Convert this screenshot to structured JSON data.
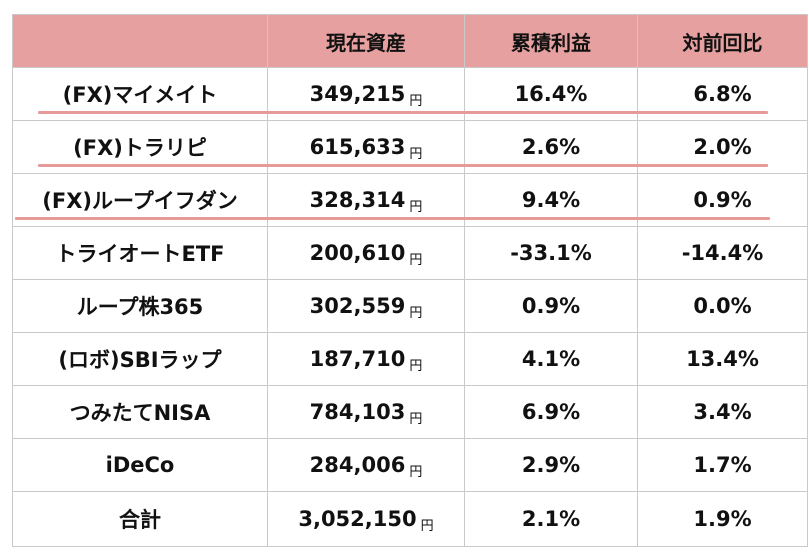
{
  "table": {
    "headers": [
      "",
      "現在資産",
      "累積利益",
      "対前回比"
    ],
    "currency_unit": "円",
    "rows": [
      {
        "name": "(FX)マイメイト",
        "amount": "349,215",
        "cumulative": "16.4%",
        "change": "6.8%",
        "highlighted": true
      },
      {
        "name": "(FX)トラリピ",
        "amount": "615,633",
        "cumulative": "2.6%",
        "change": "2.0%",
        "highlighted": true
      },
      {
        "name": "(FX)ループイフダン",
        "amount": "328,314",
        "cumulative": "9.4%",
        "change": "0.9%",
        "highlighted": true
      },
      {
        "name": "トライオートETF",
        "amount": "200,610",
        "cumulative": "-33.1%",
        "change": "-14.4%",
        "highlighted": false
      },
      {
        "name": "ループ株365",
        "amount": "302,559",
        "cumulative": "0.9%",
        "change": "0.0%",
        "highlighted": false
      },
      {
        "name": "(ロボ)SBIラップ",
        "amount": "187,710",
        "cumulative": "4.1%",
        "change": "13.4%",
        "highlighted": false
      },
      {
        "name": "つみたてNISA",
        "amount": "784,103",
        "cumulative": "6.9%",
        "change": "3.4%",
        "highlighted": false
      },
      {
        "name": "iDeCo",
        "amount": "284,006",
        "cumulative": "2.9%",
        "change": "1.7%",
        "highlighted": false
      }
    ],
    "total": {
      "name": "合計",
      "amount": "3,052,150",
      "cumulative": "2.1%",
      "change": "1.9%"
    }
  },
  "colors": {
    "header_bg": "#e7a0a0",
    "highlight_line": "#e79a9a",
    "border": "#c9c9c9"
  }
}
